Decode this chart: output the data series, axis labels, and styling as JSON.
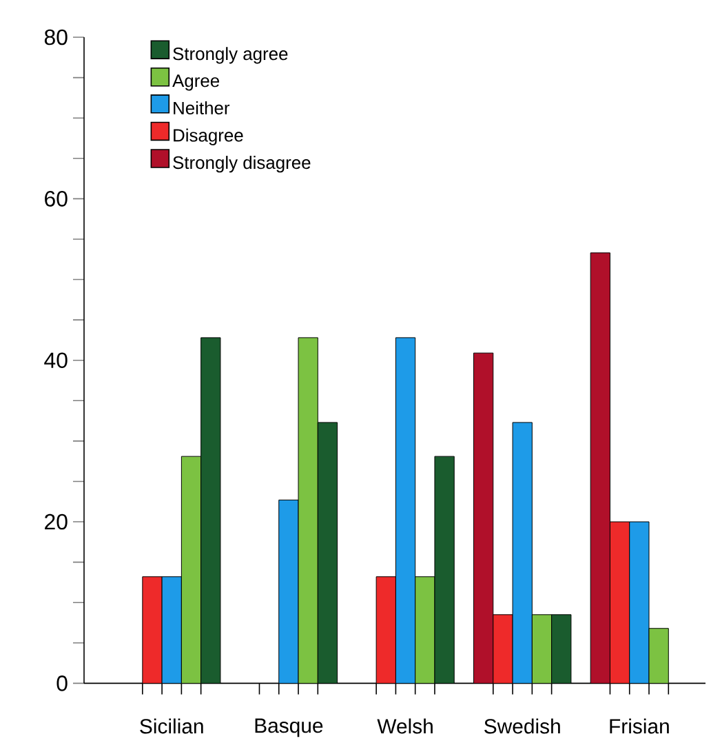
{
  "chart_data": {
    "type": "bar",
    "categories": [
      "Sicilian",
      "Basque",
      "Welsh",
      "Swedish",
      "Frisian"
    ],
    "series": [
      {
        "name": "Strongly disagree",
        "color": "#b0102a",
        "values": [
          null,
          null,
          null,
          40.9,
          53.3
        ]
      },
      {
        "name": "Disagree",
        "color": "#ee2a2a",
        "values": [
          13.2,
          null,
          13.2,
          8.5,
          20
        ]
      },
      {
        "name": "Neither",
        "color": "#1e9be8",
        "values": [
          13.2,
          22.7,
          42.8,
          32.3,
          20
        ]
      },
      {
        "name": "Agree",
        "color": "#7cc242",
        "values": [
          28.1,
          42.8,
          13.2,
          8.5,
          6.8
        ]
      },
      {
        "name": "Strongly agree",
        "color": "#1a5c2e",
        "values": [
          42.8,
          32.3,
          28.1,
          8.5,
          null
        ]
      }
    ],
    "ylim": [
      0,
      80
    ],
    "yticks": [
      0,
      {
        "value": 5,
        "label": null
      },
      {
        "value": 10,
        "label": null
      },
      {
        "value": 15,
        "label": null
      },
      20,
      {
        "value": 25,
        "label": null
      },
      {
        "value": 30,
        "label": null
      },
      {
        "value": 35,
        "label": null
      },
      40,
      {
        "value": 45,
        "label": null
      },
      {
        "value": 50,
        "label": null
      },
      {
        "value": 55,
        "label": null
      },
      60,
      {
        "value": 65,
        "label": null
      },
      {
        "value": 70,
        "label": null
      },
      {
        "value": 75,
        "label": null
      },
      80
    ],
    "grid": false,
    "legend": "top left"
  }
}
